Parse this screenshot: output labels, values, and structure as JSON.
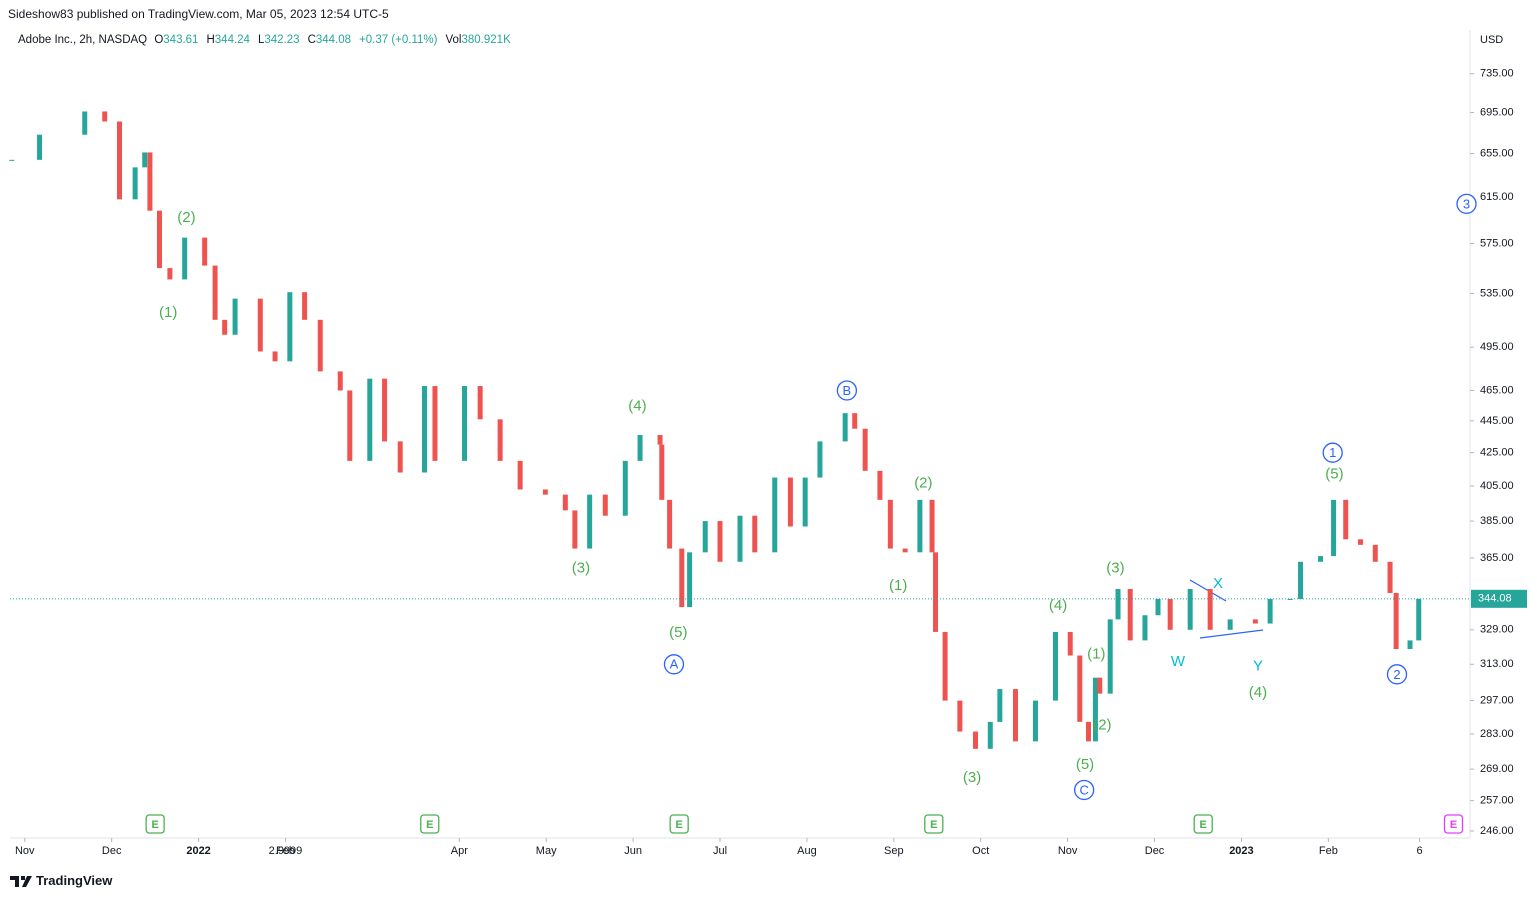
{
  "header": {
    "publisher": "Sideshow83 published on TradingView.com, Mar 05, 2023 12:54 UTC-5",
    "footer": "TradingView"
  },
  "chart_data": {
    "type": "candlestick",
    "symbol": "Adobe Inc., 2h, NASDAQ",
    "ohlc_labels": [
      {
        "key": "O",
        "value": "343.61"
      },
      {
        "key": "H",
        "value": "344.24"
      },
      {
        "key": "L",
        "value": "342.23"
      },
      {
        "key": "C",
        "value": "344.08"
      }
    ],
    "change": "+0.37 (+0.11%)",
    "volume_key": "Vol",
    "volume": "380.921K",
    "currency": "USD",
    "x": [
      -0.15,
      0.17,
      0.69,
      0.92,
      1.09,
      1.27,
      1.38,
      1.44,
      1.55,
      1.67,
      1.84,
      2.07,
      2.19,
      2.3,
      2.42,
      2.71,
      2.88,
      3.05,
      3.22,
      3.4,
      3.63,
      3.74,
      3.97,
      4.14,
      4.32,
      4.6,
      4.72,
      5.06,
      5.24,
      5.47,
      5.7,
      5.99,
      6.22,
      6.33,
      6.5,
      6.68,
      6.91,
      7.08,
      7.31,
      7.33,
      7.42,
      7.56,
      7.65,
      7.83,
      8.0,
      8.23,
      8.4,
      8.63,
      8.81,
      8.98,
      9.15,
      9.44,
      9.55,
      9.67,
      9.84,
      9.96,
      10.13,
      10.3,
      10.44,
      10.48,
      10.59,
      10.76,
      10.94,
      11.11,
      11.22,
      11.4,
      11.63,
      11.86,
      12.03,
      12.14,
      12.24,
      12.32,
      12.37,
      12.49,
      12.58,
      12.72,
      12.89,
      13.04,
      13.18,
      13.41,
      13.64,
      13.87,
      14.16,
      14.33,
      14.56,
      14.68,
      14.91,
      15.06,
      15.2,
      15.37,
      15.54,
      15.71,
      15.78,
      15.94,
      16.04
    ],
    "close": [
      649,
      673,
      696,
      686,
      613,
      642,
      656,
      603,
      555,
      546,
      580,
      557,
      515,
      504,
      531,
      492,
      485,
      536,
      515,
      478,
      465,
      420,
      473,
      432,
      413,
      468,
      420,
      468,
      446,
      420,
      403,
      400,
      391,
      370,
      400,
      388,
      420,
      436,
      430,
      397,
      370,
      340,
      368,
      385,
      363,
      388,
      368,
      410,
      382,
      410,
      432,
      450,
      440,
      414,
      397,
      370,
      368,
      397,
      368,
      328,
      297,
      284,
      277,
      288,
      302,
      280,
      297,
      328,
      317,
      288,
      280,
      307,
      300,
      334,
      349,
      324,
      336,
      344,
      329,
      349,
      329,
      334,
      332,
      344,
      344,
      363,
      366,
      397,
      375,
      372,
      363,
      347,
      320,
      324,
      344.08
    ],
    "xlim": [
      -0.17,
      16.63
    ],
    "xticks": [
      {
        "value": 0,
        "label": "Nov"
      },
      {
        "value": 1,
        "label": "Dec"
      },
      {
        "value": 2,
        "label": "2022"
      },
      {
        "value": 3,
        "label": "Feb"
      },
      2.9999,
      {
        "value": 5,
        "label": "Apr"
      },
      {
        "value": 6,
        "label": "May"
      },
      {
        "value": 7,
        "label": "Jun"
      },
      {
        "value": 8,
        "label": "Jul"
      },
      {
        "value": 9,
        "label": "Aug"
      },
      {
        "value": 10,
        "label": "Sep"
      },
      {
        "value": 11,
        "label": "Oct"
      },
      {
        "value": 12,
        "label": "Nov"
      },
      {
        "value": 13,
        "label": "Dec"
      },
      {
        "value": 14,
        "label": "2023"
      },
      {
        "value": 15,
        "label": "Feb"
      },
      {
        "value": 16.05,
        "label": "6"
      }
    ],
    "ylim": [
      243.5,
      783
    ],
    "yticks": [
      {
        "value": 735,
        "label": "735.00"
      },
      {
        "value": 695,
        "label": "695.00"
      },
      {
        "value": 655,
        "label": "655.00"
      },
      {
        "value": 615,
        "label": "615.00"
      },
      {
        "value": 575,
        "label": "575.00"
      },
      {
        "value": 535,
        "label": "535.00"
      },
      {
        "value": 495,
        "label": "495.00"
      },
      {
        "value": 465,
        "label": "465.00"
      },
      {
        "value": 445,
        "label": "445.00"
      },
      {
        "value": 425,
        "label": "425.00"
      },
      {
        "value": 405,
        "label": "405.00"
      },
      {
        "value": 385,
        "label": "385.00"
      },
      {
        "value": 365,
        "label": "365.00"
      },
      {
        "value": 329,
        "label": "329.00"
      },
      {
        "value": 313,
        "label": "313.00"
      },
      {
        "value": 297,
        "label": "297.00"
      },
      {
        "value": 283,
        "label": "283.00"
      },
      {
        "value": 269,
        "label": "269.00"
      },
      {
        "value": 257,
        "label": "257.00"
      },
      {
        "value": 246,
        "label": "246.00"
      }
    ],
    "log_scale": true,
    "grid": false,
    "up_color": "#26a69a",
    "down_color": "#ef5350",
    "last_price": 344.08,
    "last_price_color": "#26a69a",
    "annotation_colors": {
      "wave": "#4caf50",
      "circle": "#2962ff",
      "corrective": "#00bcd4"
    },
    "annotations": [
      {
        "text": "(2)",
        "x": 1.86,
        "y": 597.6,
        "style": "wave"
      },
      {
        "text": "(1)",
        "x": 1.65,
        "y": 521,
        "style": "wave"
      },
      {
        "text": "(4)",
        "x": 7.05,
        "y": 455,
        "style": "wave"
      },
      {
        "text": "(3)",
        "x": 6.4,
        "y": 360,
        "style": "wave"
      },
      {
        "text": "(5)",
        "x": 7.52,
        "y": 328,
        "style": "wave"
      },
      {
        "text": "A",
        "x": 7.47,
        "y": 313,
        "style": "circle"
      },
      {
        "text": "B",
        "x": 9.46,
        "y": 465,
        "style": "circle"
      },
      {
        "text": "(2)",
        "x": 10.34,
        "y": 407,
        "style": "wave"
      },
      {
        "text": "(1)",
        "x": 10.05,
        "y": 351,
        "style": "wave"
      },
      {
        "text": "(3)",
        "x": 10.9,
        "y": 266,
        "style": "wave"
      },
      {
        "text": "(4)",
        "x": 11.89,
        "y": 341,
        "style": "wave"
      },
      {
        "text": "(3)",
        "x": 12.55,
        "y": 360,
        "style": "wave"
      },
      {
        "text": "(1)",
        "x": 12.33,
        "y": 318,
        "style": "wave"
      },
      {
        "text": "(2)",
        "x": 12.4,
        "y": 287,
        "style": "wave"
      },
      {
        "text": "(5)",
        "x": 12.2,
        "y": 271,
        "style": "wave"
      },
      {
        "text": "C",
        "x": 12.19,
        "y": 261,
        "style": "circle"
      },
      {
        "text": "W",
        "x": 13.27,
        "y": 314.5,
        "style": "corrective"
      },
      {
        "text": "X",
        "x": 13.73,
        "y": 352,
        "style": "corrective"
      },
      {
        "text": "Y",
        "x": 14.19,
        "y": 312.5,
        "style": "corrective"
      },
      {
        "text": "(4)",
        "x": 14.19,
        "y": 300.6,
        "style": "wave"
      },
      {
        "text": "1",
        "x": 15.05,
        "y": 425,
        "style": "circle"
      },
      {
        "text": "(5)",
        "x": 15.07,
        "y": 412.5,
        "style": "wave"
      },
      {
        "text": "2",
        "x": 15.79,
        "y": 308.5,
        "style": "circle"
      },
      {
        "text": "3",
        "x": 16.59,
        "y": 609,
        "style": "circle"
      }
    ],
    "earnings": [
      {
        "x": 1.5,
        "label": "E",
        "color": "#4caf50"
      },
      {
        "x": 4.66,
        "label": "E",
        "color": "#4caf50"
      },
      {
        "x": 7.53,
        "label": "E",
        "color": "#4caf50"
      },
      {
        "x": 10.46,
        "label": "E",
        "color": "#4caf50"
      },
      {
        "x": 13.56,
        "label": "E",
        "color": "#4caf50"
      },
      {
        "x": 16.44,
        "label": "E",
        "color": "#e040fb"
      }
    ]
  }
}
